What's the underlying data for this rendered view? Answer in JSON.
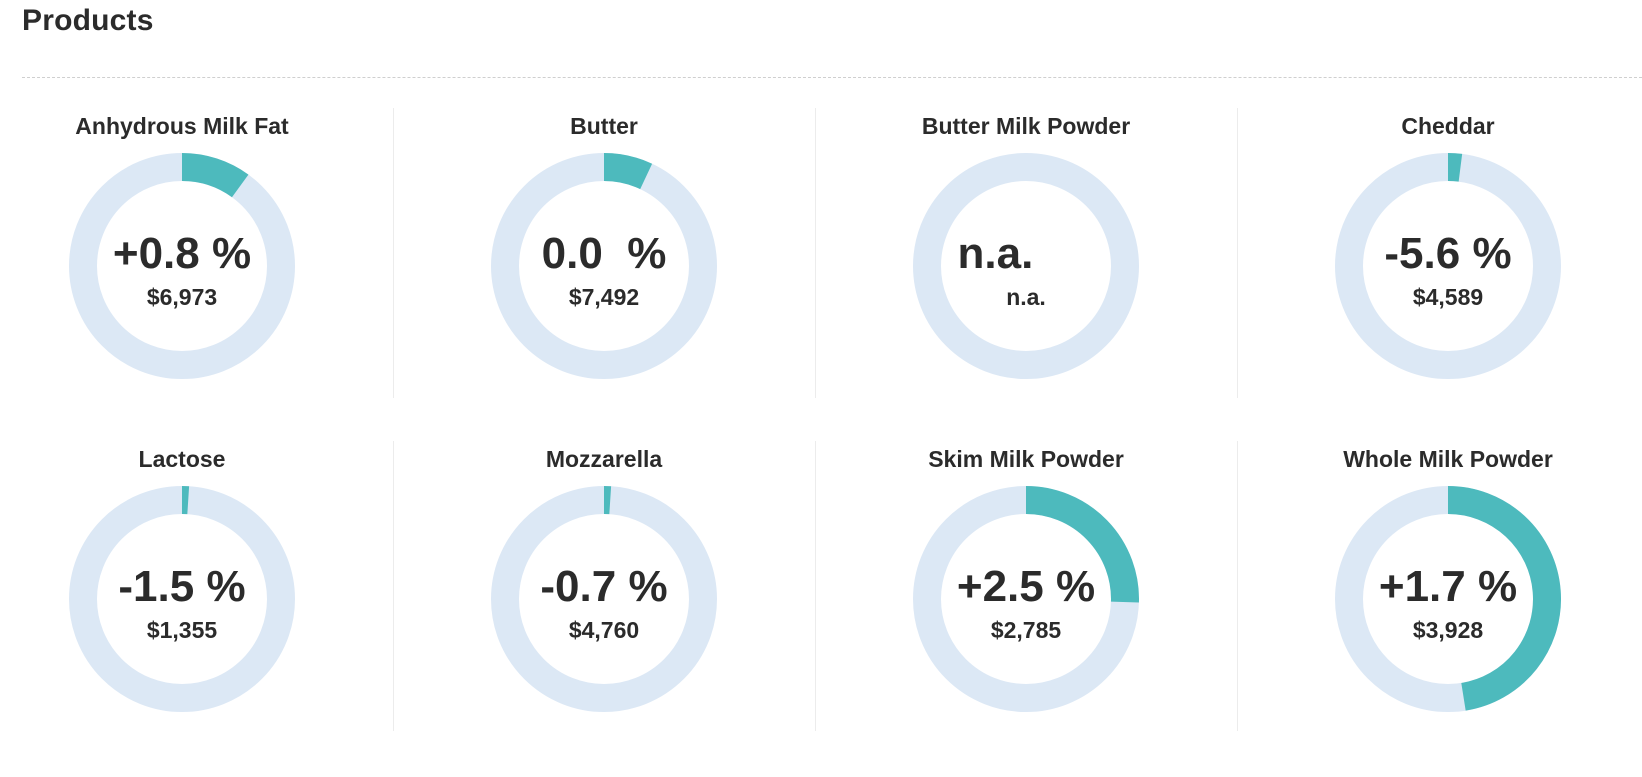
{
  "page": {
    "title": "Products"
  },
  "colors": {
    "track": "#dce8f5",
    "fill": "#4dbabd"
  },
  "products": [
    {
      "name": "Anhydrous Milk Fat",
      "change": "+0.8 %",
      "price": "$6,973",
      "fill_fraction": 0.1
    },
    {
      "name": "Butter",
      "change": "0.0  %",
      "price": "$7,492",
      "fill_fraction": 0.07
    },
    {
      "name": "Butter Milk Powder",
      "change": "n.a.     ",
      "price": "n.a.",
      "fill_fraction": 0
    },
    {
      "name": "Cheddar",
      "change": "-5.6 %",
      "price": "$4,589",
      "fill_fraction": 0.02
    },
    {
      "name": "Lactose",
      "change": "-1.5 %",
      "price": "$1,355",
      "fill_fraction": 0.01
    },
    {
      "name": "Mozzarella",
      "change": "-0.7 %",
      "price": "$4,760",
      "fill_fraction": 0.01
    },
    {
      "name": "Skim Milk Powder",
      "change": "+2.5 %",
      "price": "$2,785",
      "fill_fraction": 0.255
    },
    {
      "name": "Whole Milk Powder",
      "change": "+1.7 %",
      "price": "$3,928",
      "fill_fraction": 0.475
    }
  ]
}
